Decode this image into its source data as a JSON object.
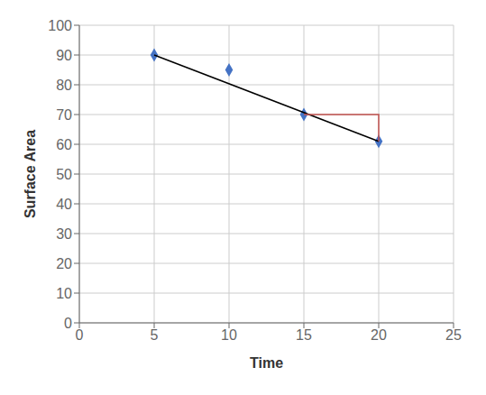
{
  "chart_data": {
    "type": "scatter",
    "x_label": "Time",
    "y_label": "Surface Area",
    "xlim": [
      0,
      25
    ],
    "ylim": [
      0,
      100
    ],
    "xticks": [
      0,
      5,
      10,
      15,
      20,
      25
    ],
    "yticks": [
      0,
      10,
      20,
      30,
      40,
      50,
      60,
      70,
      80,
      90,
      100
    ],
    "grid": true,
    "series": [
      {
        "type": "scatter",
        "color": "#4472c4",
        "marker": "diamond",
        "x": [
          5,
          10,
          15,
          20
        ],
        "values": [
          90,
          85,
          70,
          61
        ]
      },
      {
        "type": "line",
        "color": "#000000",
        "x": [
          5,
          20
        ],
        "values": [
          90,
          61
        ]
      },
      {
        "type": "line",
        "color": "#c0504d",
        "x": [
          15,
          20,
          20
        ],
        "values": [
          70,
          70,
          61
        ]
      }
    ]
  }
}
